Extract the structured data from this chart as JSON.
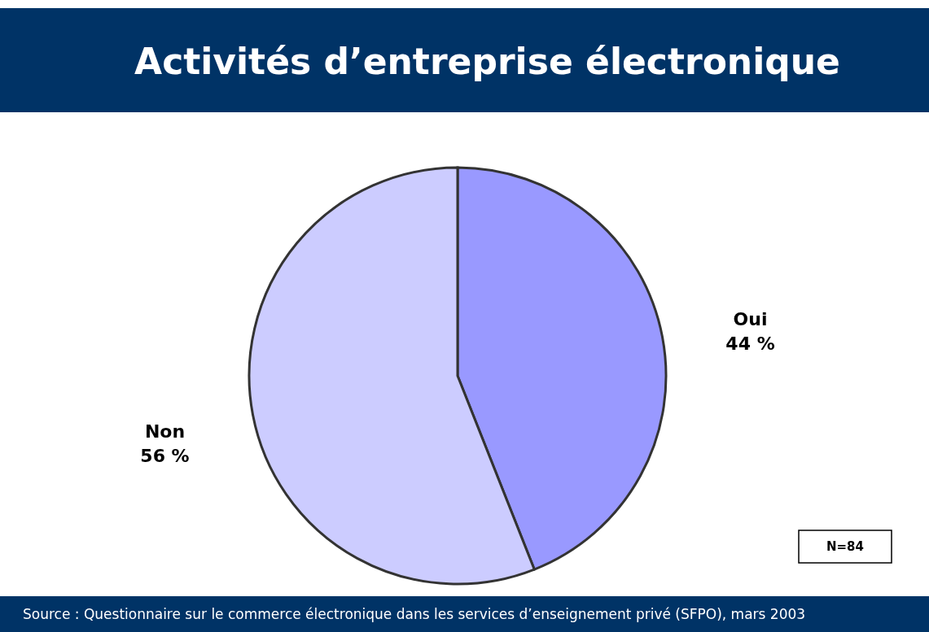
{
  "chart_data": {
    "type": "pie",
    "title": "Activités d’entreprise électronique",
    "categories": [
      "Oui",
      "Non"
    ],
    "values": [
      44,
      56
    ],
    "colors": [
      "#9999ff",
      "#ccccff"
    ],
    "value_labels": [
      "44 %",
      "56 %"
    ],
    "annotations": [
      "N=84",
      "Source : Questionnaire sur le commerce électronique dans les services d’enseignement privé (SFPO), mars 2003"
    ]
  }
}
